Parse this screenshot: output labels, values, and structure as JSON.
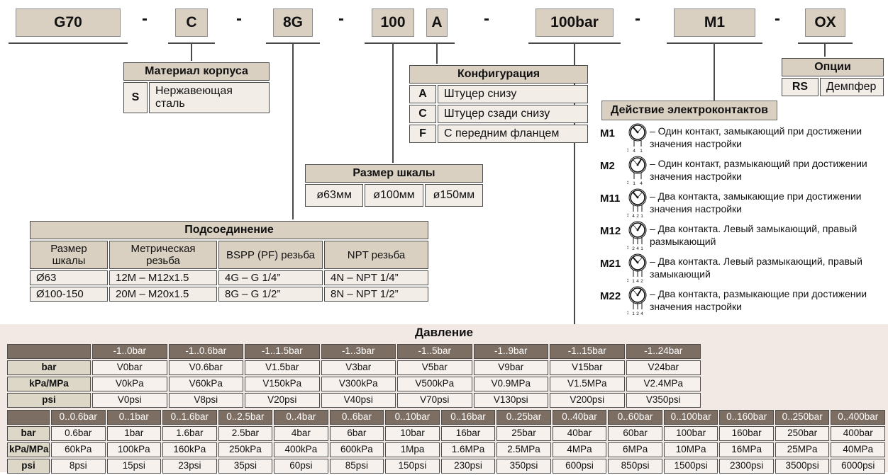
{
  "code": {
    "segments": [
      {
        "text": "G70"
      },
      {
        "text": "C"
      },
      {
        "text": "8G"
      },
      {
        "text": "100"
      },
      {
        "text": "A"
      },
      {
        "text": "100bar"
      },
      {
        "text": "M1"
      },
      {
        "text": "OX"
      }
    ],
    "separator": "-"
  },
  "material": {
    "title": "Материал корпуса",
    "rows": [
      {
        "code": "S",
        "label": "Нержавеющая сталь"
      }
    ]
  },
  "configuration": {
    "title": "Конфигурация",
    "rows": [
      {
        "code": "A",
        "label": "Штуцер снизу"
      },
      {
        "code": "C",
        "label": "Штуцер сзади снизу"
      },
      {
        "code": "F",
        "label": "С передним фланцем"
      }
    ]
  },
  "scale": {
    "title": "Размер шкалы",
    "options": [
      "ø63мм",
      "ø100мм",
      "ø150мм"
    ]
  },
  "connection": {
    "title": "Подсоединение",
    "headers": [
      "Размер шкалы",
      "Метрическая резьба",
      "BSPP (PF) резьба",
      "NPT резьба"
    ],
    "rows": [
      [
        "Ø63",
        "12M – M12x1.5",
        "4G – G 1/4”",
        "4N – NPT 1/4”"
      ],
      [
        "Ø100-150",
        "20M – M20x1.5",
        "8G – G 1/2”",
        "8N – NPT 1/2”"
      ]
    ]
  },
  "options": {
    "title": "Опции",
    "rows": [
      {
        "code": "RS",
        "label": "Демпфер"
      }
    ]
  },
  "contacts": {
    "title": "Действие электроконтактов",
    "items": [
      {
        "code": "M1",
        "leads": "4 1",
        "desc": "– Один контакт, замыкающий при достижении значения настройки"
      },
      {
        "code": "M2",
        "leads": "1 4",
        "desc": "– Один контакт, размыкающий при достижении значения настройки"
      },
      {
        "code": "M11",
        "leads": "4 2 1",
        "desc": "– Два контакта, замыкающие при достижении значения настройки"
      },
      {
        "code": "M12",
        "leads": "2 4 1",
        "desc": "–  Два контакта. Левый замыкающий, правый размыкающий"
      },
      {
        "code": "M21",
        "leads": "1 4 2",
        "desc": "– Два контакта. Левый размыкающий, правый замыкающий"
      },
      {
        "code": "M22",
        "leads": "1 2 4",
        "desc": "– Два контакта, размыкающие при достижении значения настройки"
      }
    ]
  },
  "pressure": {
    "title": "Давление",
    "unit_labels": [
      "bar",
      "kPa/MPa",
      "psi"
    ],
    "vacuum": {
      "ranges": [
        "-1..0bar",
        "-1..0.6bar",
        "-1..1.5bar",
        "-1..3bar",
        "-1..5bar",
        "-1..9bar",
        "-1..15bar",
        "-1..24bar"
      ],
      "bar": [
        "V0bar",
        "V0.6bar",
        "V1.5bar",
        "V3bar",
        "V5bar",
        "V9bar",
        "V15bar",
        "V24bar"
      ],
      "kpa_mpa": [
        "V0kPa",
        "V60kPa",
        "V150kPa",
        "V300kPa",
        "V500kPa",
        "V0.9MPa",
        "V1.5MPa",
        "V2.4MPa"
      ],
      "psi": [
        "V0psi",
        "V8psi",
        "V20psi",
        "V40psi",
        "V70psi",
        "V130psi",
        "V200psi",
        "V350psi"
      ]
    },
    "positive": {
      "ranges": [
        "0..0.6bar",
        "0..1bar",
        "0..1.6bar",
        "0..2.5bar",
        "0..4bar",
        "0..6bar",
        "0..10bar",
        "0..16bar",
        "0..25bar",
        "0..40bar",
        "0..60bar",
        "0..100bar",
        "0..160bar",
        "0..250bar",
        "0..400bar"
      ],
      "bar": [
        "0.6bar",
        "1bar",
        "1.6bar",
        "2.5bar",
        "4bar",
        "6bar",
        "10bar",
        "16bar",
        "25bar",
        "40bar",
        "60bar",
        "100bar",
        "160bar",
        "250bar",
        "400bar"
      ],
      "kpa_mpa": [
        "60kPa",
        "100kPa",
        "160kPa",
        "250kPa",
        "400kPa",
        "600kPa",
        "1Mpa",
        "1.6MPa",
        "2.5MPa",
        "4MPa",
        "6MPa",
        "10MPa",
        "16MPa",
        "25MPa",
        "40MPa"
      ],
      "psi": [
        "8psi",
        "15psi",
        "23psi",
        "35psi",
        "60psi",
        "85psi",
        "150psi",
        "230psi",
        "350psi",
        "600psi",
        "850psi",
        "1500psi",
        "2300psi",
        "3500psi",
        "6000psi"
      ]
    }
  },
  "colors": {
    "box_fill": "#d9d0c2",
    "cell_fill": "#f3ede8",
    "dark_header": "#7d6e63",
    "label_fill": "#ddd7c7",
    "section_bg": "#f2e9e4",
    "border": "#4d4d4d"
  }
}
